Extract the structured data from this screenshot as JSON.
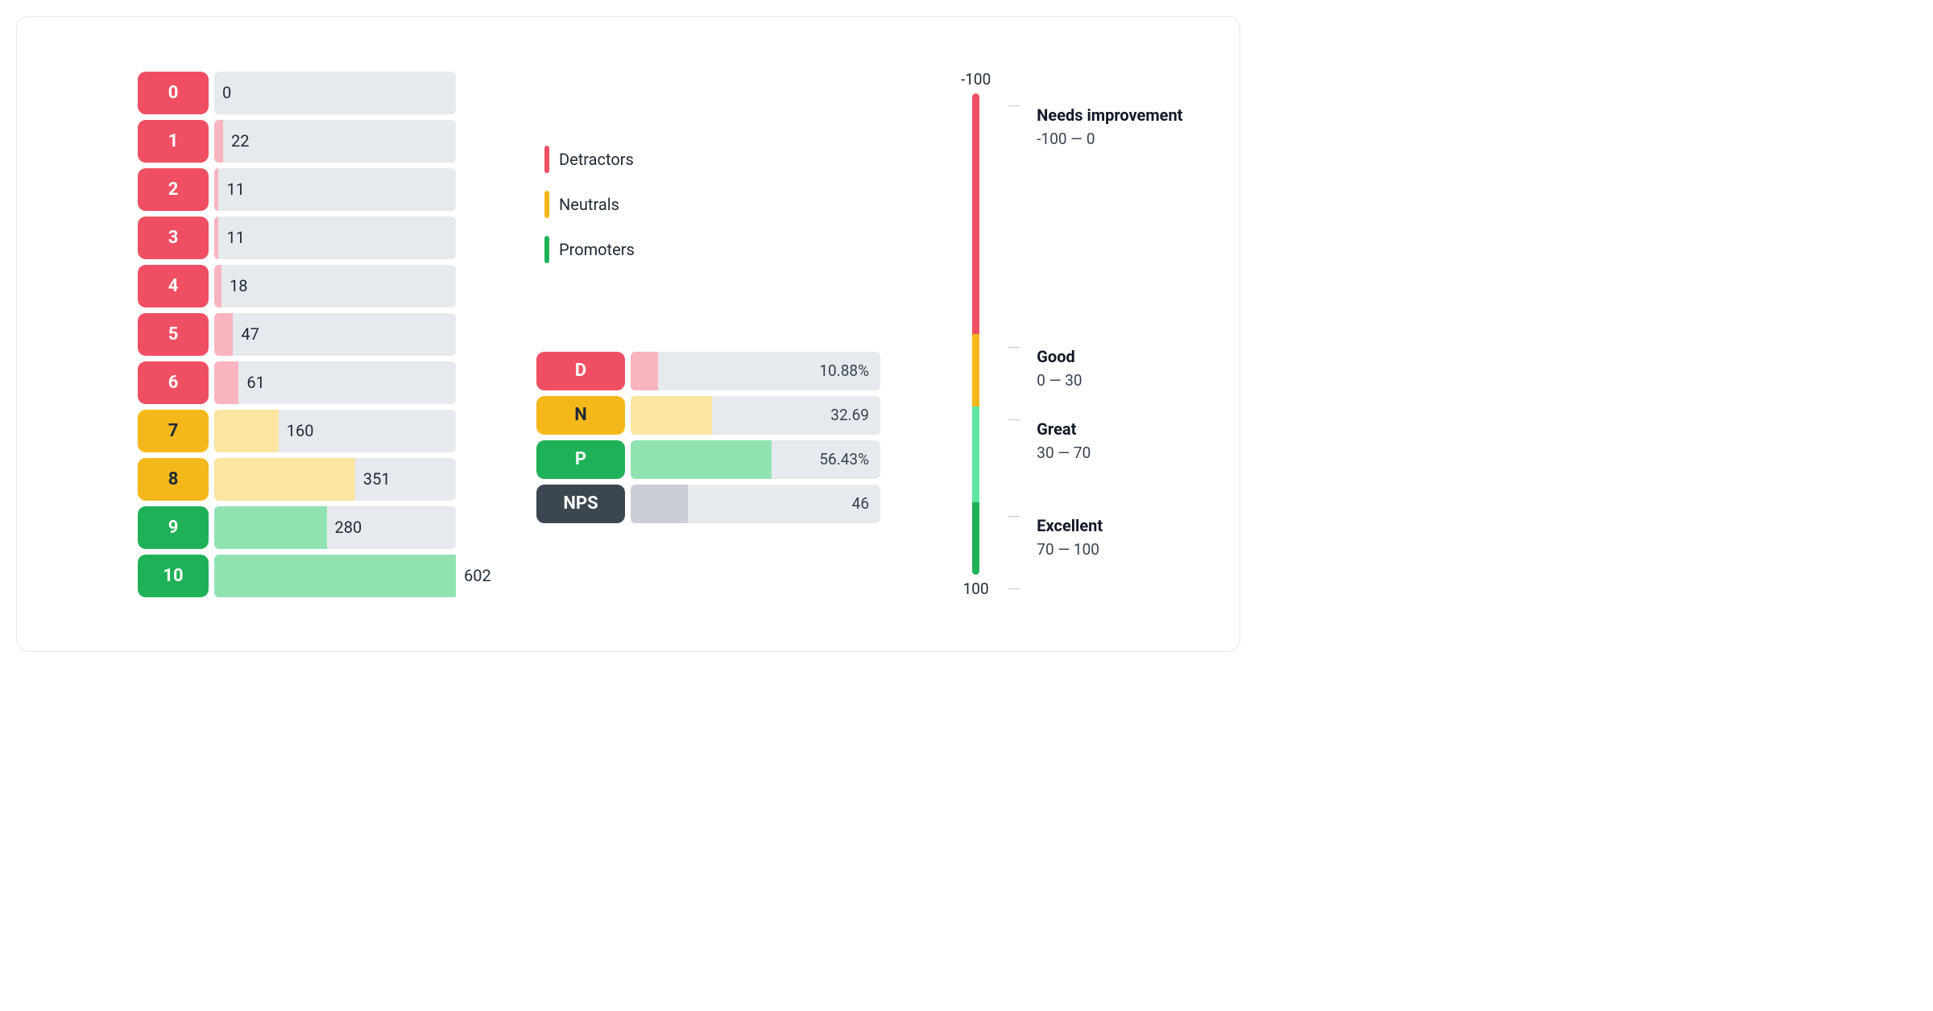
{
  "colors": {
    "track": "#e6e9ed",
    "detractor": "#f04f63",
    "detractor_fill": "#f9b4bd",
    "neutral": "#f5b81b",
    "neutral_fill": "#fbe5a0",
    "promoter": "#1fb157",
    "promoter_fill": "#90e3b1",
    "nps": "#3b4651",
    "nps_fill": "#c8ced4",
    "text": "#1f2937",
    "scale_good": "#f5b81b",
    "scale_great": "#5de6a0",
    "scale_excellent": "#1fb157"
  },
  "distribution": {
    "max": 602,
    "rows": [
      {
        "score": "0",
        "value": 0,
        "category": "detractor"
      },
      {
        "score": "1",
        "value": 22,
        "category": "detractor"
      },
      {
        "score": "2",
        "value": 11,
        "category": "detractor"
      },
      {
        "score": "3",
        "value": 11,
        "category": "detractor"
      },
      {
        "score": "4",
        "value": 18,
        "category": "detractor"
      },
      {
        "score": "5",
        "value": 47,
        "category": "detractor"
      },
      {
        "score": "6",
        "value": 61,
        "category": "detractor"
      },
      {
        "score": "7",
        "value": 160,
        "category": "neutral"
      },
      {
        "score": "8",
        "value": 351,
        "category": "neutral"
      },
      {
        "score": "9",
        "value": 280,
        "category": "promoter"
      },
      {
        "score": "10",
        "value": 602,
        "category": "promoter"
      }
    ]
  },
  "legend": [
    {
      "label": "Detractors",
      "color_key": "detractor"
    },
    {
      "label": "Neutrals",
      "color_key": "neutral"
    },
    {
      "label": "Promoters",
      "color_key": "promoter"
    }
  ],
  "summary": {
    "rows": [
      {
        "key": "D",
        "value_label": "10.88%",
        "percent": 10.88,
        "badge_key": "detractor",
        "fill_key": "detractor_fill",
        "dark_text": false
      },
      {
        "key": "N",
        "value_label": "32.69",
        "percent": 32.69,
        "badge_key": "neutral",
        "fill_key": "neutral_fill",
        "dark_text": true
      },
      {
        "key": "P",
        "value_label": "56.43%",
        "percent": 56.43,
        "badge_key": "promoter",
        "fill_key": "promoter_fill",
        "dark_text": false
      },
      {
        "key": "NPS",
        "value_label": "46",
        "percent": 23,
        "badge_key": "nps",
        "fill_key": "nps_fill",
        "dark_text": false
      }
    ]
  },
  "scale": {
    "top_label": "-100",
    "bottom_label": "100",
    "segments": [
      {
        "color_key": "detractor",
        "flex": 50
      },
      {
        "color_key": "scale_good",
        "flex": 15
      },
      {
        "color_key": "scale_great",
        "flex": 20
      },
      {
        "color_key": "scale_excellent",
        "flex": 15
      }
    ],
    "ticks_pct": [
      0,
      50,
      65,
      85,
      100
    ],
    "labels": [
      {
        "title": "Needs improvement",
        "range": "-100 — 0"
      },
      {
        "title": "Good",
        "range": "0 — 30"
      },
      {
        "title": "Great",
        "range": "30 — 70"
      },
      {
        "title": "Excellent",
        "range": "70 — 100"
      }
    ]
  }
}
